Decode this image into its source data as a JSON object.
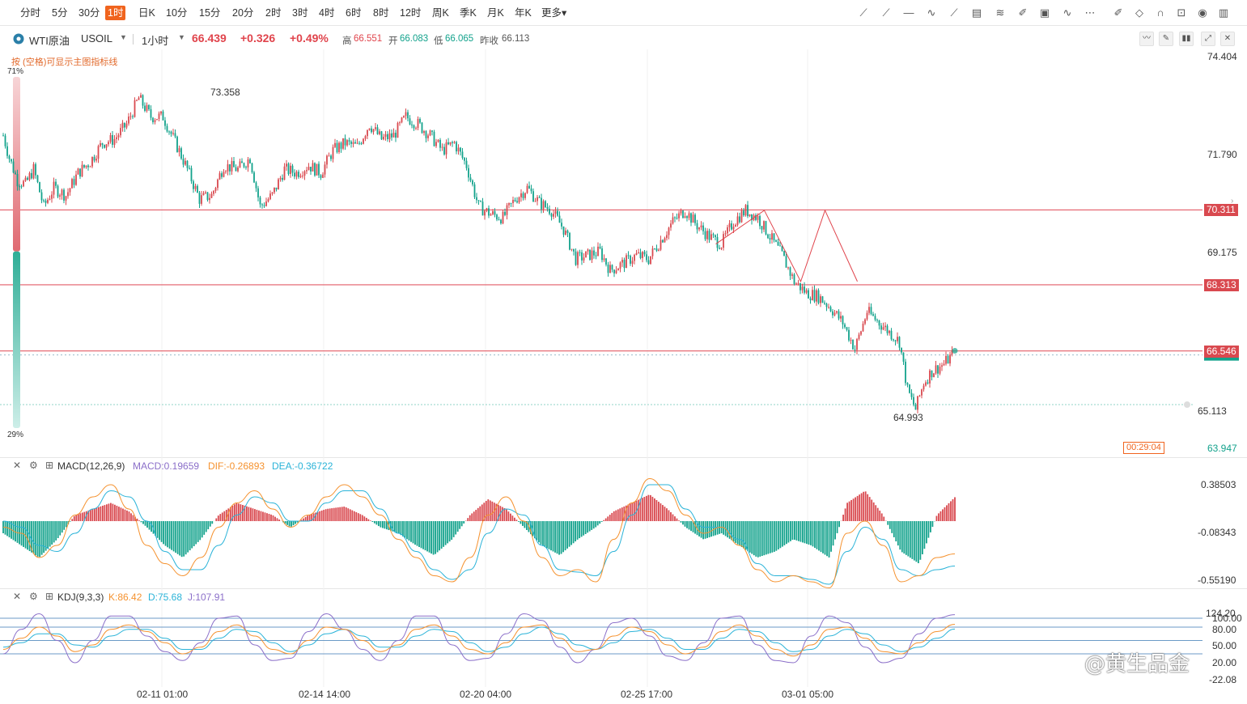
{
  "periods": [
    "分时",
    "5分",
    "30分",
    "1时",
    "日K",
    "10分",
    "15分",
    "20分",
    "2时",
    "3时",
    "4时",
    "6时",
    "8时",
    "12时",
    "周K",
    "季K",
    "月K",
    "年K",
    "更多"
  ],
  "active_period": "1时",
  "toolbar_icons": [
    "trendline-icon",
    "ray-icon",
    "horizontal-line-icon",
    "polyline-icon",
    "arrow-icon",
    "fibonacci-icon",
    "fan-icon",
    "pen-icon",
    "image-icon",
    "wave-icon",
    "more-dots-icon",
    "edit-icon",
    "eraser-icon",
    "magnet-icon",
    "lock-icon",
    "eye-icon",
    "trash-icon"
  ],
  "symbol": {
    "name": "WTI原油",
    "code": "USOIL",
    "interval": "1小时",
    "last": "66.439",
    "change": "+0.326",
    "change_pct": "+0.49%",
    "high_label": "高",
    "high": "66.551",
    "open_label": "开",
    "open": "66.083",
    "low_label": "低",
    "low": "66.065",
    "prev_close_label": "昨收",
    "prev_close": "66.113"
  },
  "hint": "按 (空格)可显示主图指标线",
  "ratio_gauge": {
    "top": "71%",
    "bottom": "29%",
    "fraction_top": 0.71
  },
  "price_axis": [
    "74.404",
    "71.790",
    "69.175",
    "63.947"
  ],
  "price_lines": [
    {
      "value": 70.311,
      "label": "70.311"
    },
    {
      "value": 68.313,
      "label": "68.313"
    },
    {
      "value": 66.546,
      "label": "66.546"
    }
  ],
  "dotted_level": {
    "value": 65.113,
    "label": "65.113"
  },
  "current_price": 66.439,
  "countdown": "00:29:04",
  "annotations": {
    "high": "73.358",
    "low": "64.993"
  },
  "colors": {
    "up": "#d9494f",
    "down": "#13a28c",
    "accent": "#f0641e",
    "line": "#e25c67",
    "macd_dif": "#f5922f",
    "macd_dea": "#2ab3d8",
    "kdj_k": "#f5922f",
    "kdj_d": "#2ab3d8",
    "kdj_j": "#8b6fc9"
  },
  "macd": {
    "title": "MACD(12,26,9)",
    "macd": "MACD:0.19659",
    "dif": "DIF:-0.26893",
    "dea": "DEA:-0.36722",
    "axis": [
      "0.38503",
      "-0.08343",
      "-0.55190"
    ]
  },
  "kdj": {
    "title": "KDJ(9,3,3)",
    "k": "K:86.42",
    "d": "D:75.68",
    "j": "J:107.91",
    "axis": [
      "124.20",
      "100.00",
      "80.00",
      "50.00",
      "20.00",
      "-22.08"
    ]
  },
  "time_axis": [
    "02-11 01:00",
    "02-14 14:00",
    "02-20 04:00",
    "02-25 17:00",
    "03-01 05:00"
  ],
  "watermark": "@黄生品金",
  "chart_data": {
    "type": "candlestick",
    "ylim": [
      63.947,
      74.404
    ],
    "path_points": [
      [
        0,
        72.3
      ],
      [
        3,
        71.7
      ],
      [
        7,
        71.1
      ],
      [
        11,
        71.0
      ],
      [
        15,
        71.4
      ],
      [
        20,
        70.4
      ],
      [
        25,
        70.9
      ],
      [
        31,
        70.7
      ],
      [
        37,
        71.3
      ],
      [
        43,
        71.6
      ],
      [
        49,
        72.1
      ],
      [
        55,
        72.2
      ],
      [
        61,
        72.6
      ],
      [
        67,
        73.3
      ],
      [
        73,
        72.8
      ],
      [
        79,
        72.8
      ],
      [
        86,
        72.0
      ],
      [
        91,
        71.4
      ],
      [
        97,
        70.6
      ],
      [
        103,
        70.7
      ],
      [
        109,
        71.5
      ],
      [
        116,
        71.4
      ],
      [
        122,
        71.7
      ],
      [
        127,
        70.4
      ],
      [
        133,
        70.7
      ],
      [
        139,
        71.4
      ],
      [
        145,
        71.3
      ],
      [
        151,
        71.5
      ],
      [
        157,
        71.3
      ],
      [
        163,
        71.9
      ],
      [
        169,
        72.1
      ],
      [
        175,
        72.0
      ],
      [
        181,
        72.6
      ],
      [
        187,
        72.2
      ],
      [
        193,
        72.3
      ],
      [
        199,
        72.8
      ],
      [
        205,
        72.6
      ],
      [
        211,
        72.3
      ],
      [
        217,
        71.9
      ],
      [
        223,
        72.1
      ],
      [
        229,
        71.5
      ],
      [
        235,
        70.4
      ],
      [
        241,
        70.2
      ],
      [
        247,
        70.1
      ],
      [
        253,
        70.6
      ],
      [
        259,
        70.9
      ],
      [
        265,
        70.5
      ],
      [
        271,
        70.3
      ],
      [
        277,
        69.8
      ],
      [
        283,
        69.0
      ],
      [
        289,
        69.1
      ],
      [
        295,
        69.2
      ],
      [
        300,
        68.7
      ],
      [
        307,
        68.9
      ],
      [
        313,
        69.1
      ],
      [
        319,
        69.0
      ],
      [
        325,
        69.5
      ],
      [
        331,
        70.0
      ],
      [
        337,
        70.3
      ],
      [
        343,
        69.9
      ],
      [
        349,
        69.6
      ],
      [
        355,
        69.4
      ],
      [
        361,
        70.0
      ],
      [
        367,
        70.3
      ],
      [
        373,
        70.1
      ],
      [
        379,
        69.6
      ],
      [
        385,
        69.1
      ],
      [
        391,
        68.4
      ],
      [
        397,
        68.1
      ],
      [
        403,
        68.0
      ],
      [
        409,
        67.7
      ],
      [
        415,
        67.3
      ],
      [
        421,
        66.6
      ],
      [
        427,
        67.6
      ],
      [
        433,
        67.3
      ],
      [
        439,
        67.0
      ],
      [
        443,
        66.8
      ],
      [
        447,
        65.5
      ],
      [
        451,
        64.993
      ],
      [
        455,
        65.7
      ],
      [
        459,
        66.0
      ],
      [
        465,
        66.2
      ],
      [
        469,
        66.439
      ]
    ],
    "macd_dif": [
      -0.05,
      -0.1,
      -0.3,
      -0.2,
      0.05,
      0.2,
      0.3,
      0.1,
      -0.2,
      -0.35,
      -0.45,
      -0.3,
      -0.05,
      0.15,
      0.25,
      0.1,
      -0.05,
      0.05,
      0.2,
      0.3,
      0.2,
      0.05,
      -0.15,
      -0.3,
      -0.45,
      -0.5,
      -0.3,
      0.05,
      0.2,
      0.0,
      -0.3,
      -0.45,
      -0.4,
      -0.5,
      -0.15,
      0.15,
      0.35,
      0.25,
      0.05,
      -0.1,
      -0.05,
      -0.2,
      -0.4,
      -0.5,
      -0.45,
      -0.5,
      -0.55,
      -0.1,
      0.0,
      -0.2,
      -0.5,
      -0.45,
      -0.3,
      -0.27
    ],
    "macd_dea": [
      0.0,
      -0.05,
      -0.2,
      -0.25,
      -0.1,
      0.1,
      0.25,
      0.2,
      0.0,
      -0.25,
      -0.4,
      -0.4,
      -0.2,
      0.05,
      0.2,
      0.15,
      0.0,
      0.0,
      0.15,
      0.25,
      0.25,
      0.1,
      -0.1,
      -0.25,
      -0.4,
      -0.48,
      -0.4,
      -0.1,
      0.1,
      0.05,
      -0.2,
      -0.4,
      -0.42,
      -0.45,
      -0.25,
      0.05,
      0.3,
      0.3,
      0.1,
      -0.05,
      -0.05,
      -0.15,
      -0.35,
      -0.45,
      -0.45,
      -0.48,
      -0.52,
      -0.25,
      -0.05,
      -0.15,
      -0.4,
      -0.45,
      -0.4,
      -0.37
    ],
    "macd_hist": [
      -0.1,
      -0.2,
      -0.3,
      -0.15,
      0.05,
      0.1,
      0.15,
      0.08,
      -0.05,
      -0.2,
      -0.3,
      -0.15,
      0.05,
      0.15,
      0.1,
      0.05,
      -0.05,
      0.05,
      0.1,
      0.12,
      0.05,
      -0.05,
      -0.1,
      -0.2,
      -0.28,
      -0.15,
      0.05,
      0.18,
      0.1,
      -0.05,
      -0.2,
      -0.28,
      -0.15,
      -0.05,
      0.08,
      0.15,
      0.22,
      0.1,
      -0.05,
      -0.15,
      -0.1,
      -0.2,
      -0.3,
      -0.25,
      -0.15,
      -0.2,
      -0.3,
      0.15,
      0.25,
      0.05,
      -0.25,
      -0.35,
      0.05,
      0.197
    ],
    "kdj_k": [
      30,
      55,
      80,
      60,
      25,
      40,
      75,
      85,
      70,
      45,
      20,
      35,
      70,
      85,
      60,
      30,
      20,
      50,
      80,
      75,
      50,
      25,
      40,
      75,
      85,
      60,
      30,
      20,
      45,
      80,
      85,
      55,
      25,
      30,
      60,
      80,
      70,
      40,
      20,
      35,
      70,
      85,
      60,
      30,
      15,
      40,
      75,
      80,
      55,
      25,
      20,
      45,
      70,
      86.42
    ],
    "kdj_d": [
      35,
      45,
      65,
      65,
      40,
      35,
      60,
      75,
      75,
      55,
      30,
      30,
      55,
      75,
      70,
      45,
      25,
      40,
      65,
      75,
      60,
      35,
      35,
      60,
      75,
      70,
      45,
      25,
      35,
      65,
      80,
      65,
      40,
      30,
      45,
      70,
      75,
      55,
      30,
      30,
      55,
      75,
      70,
      45,
      25,
      30,
      60,
      75,
      65,
      40,
      25,
      35,
      55,
      75.68
    ],
    "kdj_j": [
      20,
      75,
      110,
      50,
      0,
      50,
      105,
      105,
      60,
      25,
      5,
      45,
      100,
      105,
      40,
      5,
      10,
      70,
      110,
      75,
      30,
      5,
      50,
      105,
      105,
      40,
      5,
      10,
      65,
      110,
      95,
      35,
      0,
      30,
      90,
      100,
      60,
      15,
      5,
      45,
      100,
      105,
      40,
      5,
      0,
      60,
      105,
      90,
      35,
      0,
      10,
      65,
      100,
      107.91
    ]
  }
}
